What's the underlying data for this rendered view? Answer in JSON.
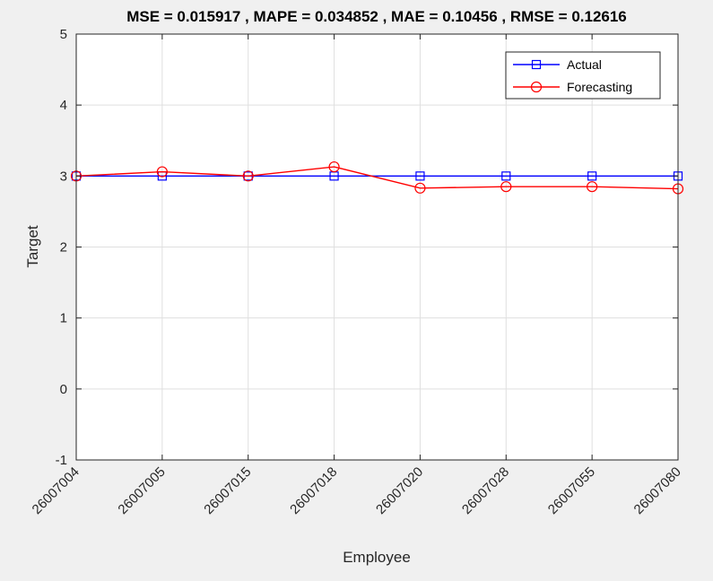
{
  "chart_data": {
    "type": "line",
    "title": "MSE = 0.015917 , MAPE = 0.034852 , MAE = 0.10456 , RMSE = 0.12616",
    "xlabel": "Employee",
    "ylabel": "Target",
    "categories": [
      "26007004",
      "26007005",
      "26007015",
      "26007018",
      "26007020",
      "26007028",
      "26007055",
      "26007080"
    ],
    "ylim": [
      -1,
      5
    ],
    "yticks": [
      "-1",
      "0",
      "1",
      "2",
      "3",
      "4",
      "5"
    ],
    "grid": true,
    "legend_position": "top-right",
    "series": [
      {
        "name": "Actual",
        "color": "#0000ff",
        "marker": "square",
        "values": [
          3,
          3,
          3,
          3,
          3,
          3,
          3,
          3
        ]
      },
      {
        "name": "Forecasting",
        "color": "#ff0000",
        "marker": "circle",
        "values": [
          3.0,
          3.06,
          3.0,
          3.13,
          2.83,
          2.85,
          2.85,
          2.82
        ]
      }
    ]
  }
}
